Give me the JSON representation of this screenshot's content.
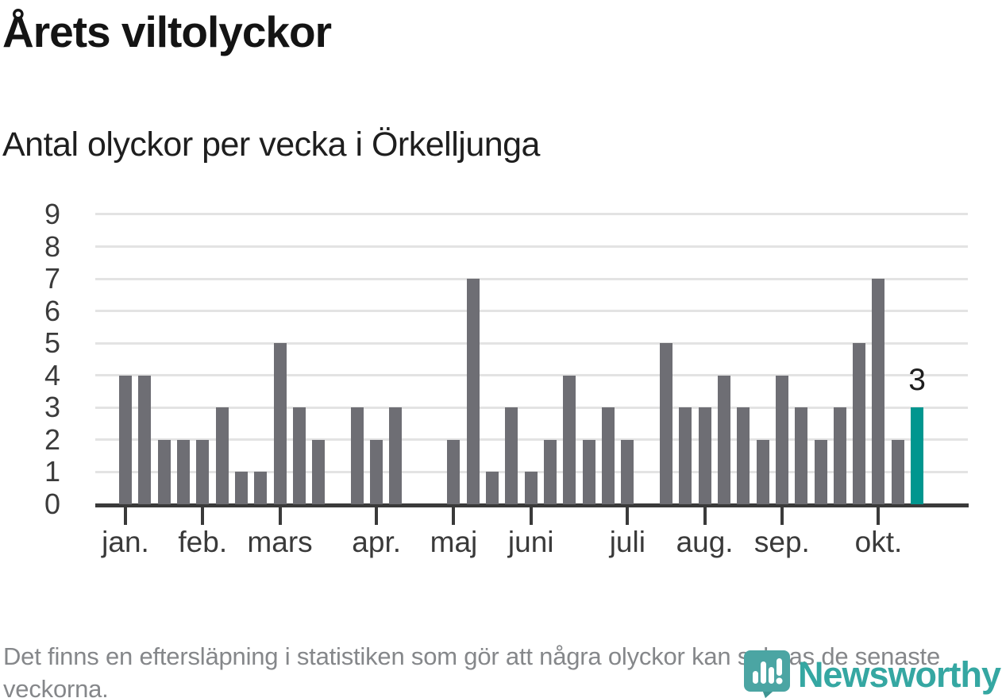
{
  "header": {
    "title": "Årets viltolyckor",
    "subtitle": "Antal olyckor per vecka i Örkelljunga"
  },
  "chart_data": {
    "type": "bar",
    "title": "Årets viltolyckor",
    "subtitle": "Antal olyckor per vecka i Örkelljunga",
    "x_unit": "vecka",
    "values": [
      4,
      4,
      2,
      2,
      2,
      3,
      1,
      1,
      5,
      3,
      2,
      0,
      3,
      2,
      3,
      0,
      0,
      2,
      7,
      1,
      3,
      1,
      2,
      4,
      2,
      3,
      2,
      0,
      5,
      3,
      3,
      4,
      3,
      2,
      4,
      3,
      2,
      3,
      5,
      7,
      2,
      3
    ],
    "highlight_last_bar": true,
    "last_bar_label": "3",
    "y_ticks": [
      0,
      1,
      2,
      3,
      4,
      5,
      6,
      7,
      8,
      9
    ],
    "ylim": [
      0,
      9
    ],
    "grid": true,
    "legend": "none",
    "month_ticks": [
      {
        "label": "jan.",
        "week": 1
      },
      {
        "label": "feb.",
        "week": 5
      },
      {
        "label": "mars",
        "week": 9
      },
      {
        "label": "apr.",
        "week": 14
      },
      {
        "label": "maj",
        "week": 18
      },
      {
        "label": "juni",
        "week": 22
      },
      {
        "label": "juli",
        "week": 27
      },
      {
        "label": "aug.",
        "week": 31
      },
      {
        "label": "sep.",
        "week": 35
      },
      {
        "label": "okt.",
        "week": 40
      }
    ]
  },
  "colors": {
    "bar": "#6e6e74",
    "highlight": "#00968f",
    "grid": "#e3e3e3",
    "axis": "#3a3a3a",
    "title_text": "#141414",
    "tick_label": "#3b3b3b",
    "footer_text": "#85878a",
    "logo_teal": "#35a7a2",
    "logo_icon_teal": "#4ba5a3"
  },
  "footer": {
    "note": "Det finns en eftersläpning i statistiken som gör att några olyckor kan saknas de senaste veckorna."
  },
  "logo": {
    "text": "Newsworthy",
    "icon": "newsworthy-bar-chart-speech-bubble-icon"
  }
}
